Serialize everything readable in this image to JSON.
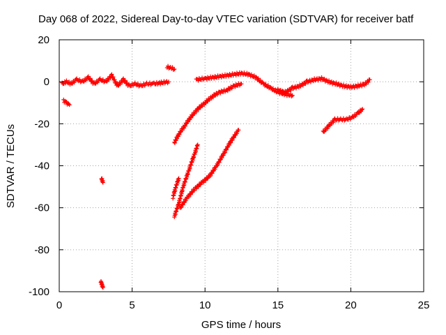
{
  "chart_data": {
    "type": "scatter",
    "title": "Day 068 of 2022, Sidereal Day-to-day VTEC variation (SDTVAR) for receiver batf",
    "xlabel": "GPS time / hours",
    "ylabel": "SDTVAR / TECUs",
    "xlim": [
      0,
      25
    ],
    "ylim": [
      -100,
      20
    ],
    "xticks": [
      0,
      5,
      10,
      15,
      20,
      25
    ],
    "yticks": [
      -100,
      -80,
      -60,
      -40,
      -20,
      0,
      20
    ],
    "grid": true,
    "legend": "none",
    "marker": "plus",
    "color": "#ff0000",
    "segments": [
      {
        "x": [
          0.2,
          0.5,
          0.8,
          1.2,
          1.6,
          2.0,
          2.4,
          2.8,
          3.2,
          3.6,
          4.0,
          4.4,
          4.8,
          5.2,
          5.6,
          6.0,
          6.5,
          7.0,
          7.5
        ],
        "y": [
          -1,
          0,
          -1,
          1,
          0,
          2,
          -1,
          1,
          0,
          3,
          -2,
          1,
          -2,
          -1,
          -2,
          -1,
          -1,
          -0.5,
          0
        ]
      },
      {
        "x": [
          0.3,
          0.5,
          0.7
        ],
        "y": [
          -9,
          -10,
          -11
        ]
      },
      {
        "x": [
          2.9,
          2.95,
          3.0
        ],
        "y": [
          -46,
          -47,
          -48
        ]
      },
      {
        "x": [
          2.85,
          2.9,
          2.95,
          3.0
        ],
        "y": [
          -95,
          -96,
          -97,
          -98
        ]
      },
      {
        "x": [
          7.4,
          7.7,
          7.9
        ],
        "y": [
          7,
          6.5,
          6
        ]
      },
      {
        "x": [
          9.4,
          10.0,
          10.5,
          11.0,
          11.5,
          12.0,
          12.5,
          13.0,
          13.5,
          14.0,
          14.5,
          15.0,
          15.5,
          16.0
        ],
        "y": [
          1,
          1.5,
          2,
          2.5,
          3,
          3.5,
          4,
          3.5,
          2,
          -1,
          -3,
          -5,
          -6,
          -6.5
        ]
      },
      {
        "x": [
          15.0,
          15.5,
          16.0,
          16.5,
          17.0,
          17.5,
          18.0,
          18.5,
          19.0,
          19.5,
          20.0,
          20.5,
          21.0,
          21.3
        ],
        "y": [
          -4,
          -5,
          -3,
          -2,
          0,
          1,
          1.5,
          0,
          -1,
          -2,
          -2.5,
          -2,
          -1,
          1
        ]
      },
      {
        "x": [
          7.9,
          8.2,
          8.6,
          9.0,
          9.5,
          10.0,
          10.5,
          11.0,
          11.5,
          12.0,
          12.5
        ],
        "y": [
          -29,
          -25,
          -21,
          -17,
          -13,
          -10,
          -7,
          -5,
          -4,
          -2,
          -1
        ]
      },
      {
        "x": [
          7.9,
          8.2,
          8.5,
          8.9,
          9.3,
          9.5
        ],
        "y": [
          -64,
          -58,
          -50,
          -42,
          -34,
          -30
        ]
      },
      {
        "x": [
          7.8,
          8.0,
          8.2
        ],
        "y": [
          -55,
          -50,
          -46
        ]
      },
      {
        "x": [
          8.3,
          8.8,
          9.3,
          9.8,
          10.3,
          10.8,
          11.3,
          11.8,
          12.3
        ],
        "y": [
          -60,
          -55,
          -51,
          -48,
          -45,
          -40,
          -34,
          -28,
          -23
        ]
      },
      {
        "x": [
          18.1,
          18.5,
          18.9,
          19.3,
          19.7,
          20.1,
          20.5,
          20.8
        ],
        "y": [
          -24,
          -21,
          -18,
          -18,
          -18,
          -17,
          -15,
          -13
        ]
      }
    ]
  }
}
